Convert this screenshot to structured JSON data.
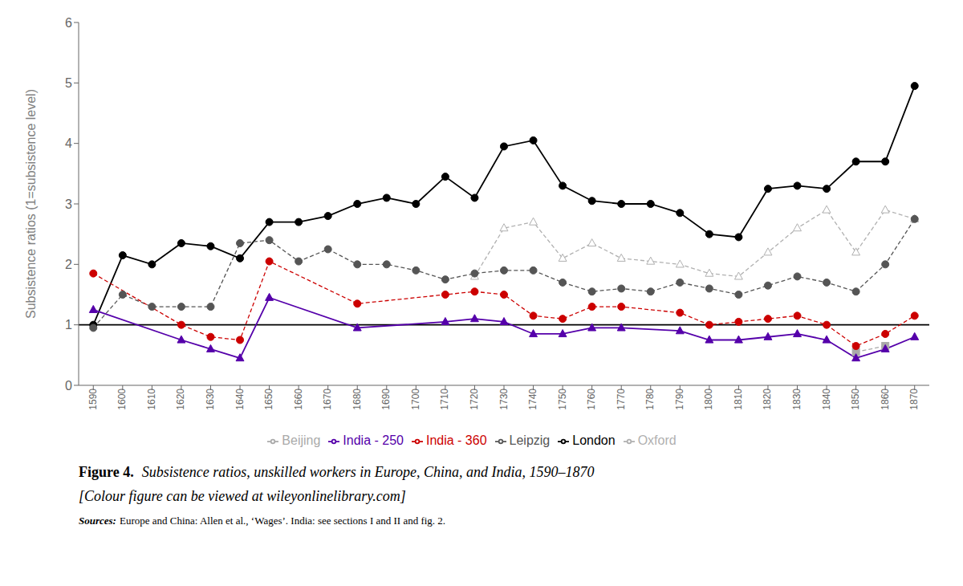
{
  "chart_data": {
    "type": "line",
    "title_prefix": "Figure 4.",
    "title": "Subsistence ratios, unskilled workers in Europe, China, and India, 1590–1870",
    "subtitle": "[Colour figure can be viewed at wileyonlinelibrary.com]",
    "notes": [
      {
        "label": "Sources:",
        "text": "Europe and China: Allen et al., ‘Wages’. India: see sections I and II and fig. 2."
      }
    ],
    "ylabel": "Subsistence ratios (1=subsistence level)",
    "x": [
      1590,
      1600,
      1610,
      1620,
      1630,
      1640,
      1650,
      1660,
      1670,
      1680,
      1690,
      1700,
      1710,
      1720,
      1730,
      1740,
      1750,
      1760,
      1770,
      1780,
      1790,
      1800,
      1810,
      1820,
      1830,
      1840,
      1850,
      1860,
      1870
    ],
    "xlim": [
      1585,
      1875
    ],
    "xticks": [
      1590,
      1600,
      1610,
      1620,
      1630,
      1640,
      1650,
      1660,
      1670,
      1680,
      1690,
      1700,
      1710,
      1720,
      1730,
      1740,
      1750,
      1760,
      1770,
      1780,
      1790,
      1800,
      1810,
      1820,
      1830,
      1840,
      1850,
      1860,
      1870
    ],
    "ylim": [
      0,
      6
    ],
    "yticks": [
      0,
      1,
      2,
      3,
      4,
      5,
      6
    ],
    "hlines": [
      1
    ],
    "grid": false,
    "legend": "bottom",
    "series": [
      {
        "name": "London",
        "color": "#000000",
        "marker": "circle",
        "line_style": "solid",
        "values": [
          1.0,
          2.15,
          2.0,
          2.35,
          2.3,
          2.1,
          2.7,
          2.7,
          2.8,
          3.0,
          3.1,
          3.0,
          3.45,
          3.1,
          3.95,
          4.05,
          3.3,
          3.05,
          3.0,
          3.0,
          2.85,
          2.5,
          2.45,
          3.25,
          3.3,
          3.25,
          3.7,
          3.7,
          4.95
        ]
      },
      {
        "name": "Oxford",
        "color": "#b0b0b0",
        "marker": "triangle-open",
        "line_style": "dashed",
        "values": [
          null,
          null,
          null,
          null,
          null,
          null,
          null,
          null,
          null,
          null,
          null,
          null,
          null,
          1.8,
          2.6,
          2.7,
          2.1,
          2.35,
          2.1,
          2.05,
          2.0,
          1.85,
          1.8,
          2.2,
          2.6,
          2.9,
          2.2,
          2.9,
          2.75
        ]
      },
      {
        "name": "Leipzig",
        "color": "#555555",
        "marker": "circle",
        "line_style": "dashed",
        "values": [
          0.95,
          1.5,
          1.3,
          1.3,
          1.3,
          2.35,
          2.4,
          2.05,
          2.25,
          2.0,
          2.0,
          1.9,
          1.75,
          1.85,
          1.9,
          1.9,
          1.7,
          1.55,
          1.6,
          1.55,
          1.7,
          1.6,
          1.5,
          1.65,
          1.8,
          1.7,
          1.55,
          2.0,
          2.75
        ]
      },
      {
        "name": "Beijing",
        "color": "#aaaaaa",
        "marker": "square",
        "line_style": "dashed",
        "values": [
          null,
          null,
          null,
          null,
          null,
          null,
          null,
          null,
          null,
          null,
          null,
          null,
          null,
          null,
          null,
          null,
          null,
          null,
          null,
          null,
          null,
          null,
          null,
          null,
          null,
          null,
          0.55,
          0.65,
          null
        ]
      },
      {
        "name": "India - 360",
        "color": "#cc0000",
        "marker": "circle",
        "line_style": "dashed",
        "values": [
          1.85,
          null,
          null,
          1.0,
          0.8,
          0.75,
          2.05,
          null,
          null,
          1.35,
          null,
          null,
          1.5,
          1.55,
          1.5,
          1.15,
          1.1,
          1.3,
          1.3,
          null,
          1.2,
          1.0,
          1.05,
          1.1,
          1.15,
          1.0,
          0.65,
          0.85,
          1.15
        ]
      },
      {
        "name": "India - 250",
        "color": "#5500aa",
        "marker": "triangle",
        "line_style": "solid",
        "values": [
          1.25,
          null,
          null,
          0.75,
          0.6,
          0.45,
          1.45,
          null,
          null,
          0.95,
          null,
          null,
          1.05,
          1.1,
          1.05,
          0.85,
          0.85,
          0.95,
          0.95,
          null,
          0.9,
          0.75,
          0.75,
          0.8,
          0.85,
          0.75,
          0.45,
          0.6,
          0.8
        ]
      }
    ]
  }
}
